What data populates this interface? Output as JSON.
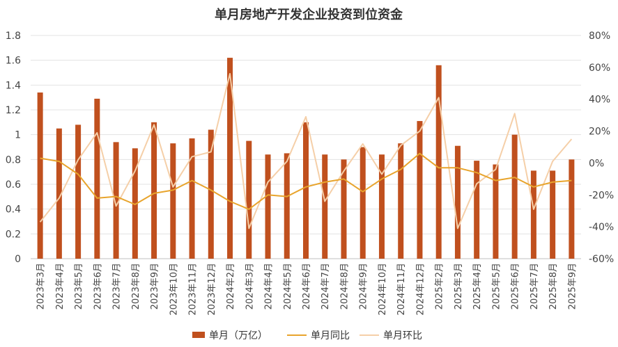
{
  "chart_data": {
    "type": "bar",
    "title": "单月房地产开发企业投资到位资金",
    "categories": [
      "2023年3月",
      "2023年4月",
      "2023年5月",
      "2023年6月",
      "2023年7月",
      "2023年8月",
      "2023年9月",
      "2023年10月",
      "2023年11月",
      "2023年12月",
      "2024年2月",
      "2024年3月",
      "2024年4月",
      "2024年5月",
      "2024年6月",
      "2024年7月",
      "2024年8月",
      "2024年9月",
      "2024年10月",
      "2024年11月",
      "2024年12月",
      "2025年2月",
      "2025年3月",
      "2025年4月",
      "2025年5月",
      "2025年6月",
      "2025年7月",
      "2025年8月",
      "2025年9月"
    ],
    "series": [
      {
        "name": "单月（万亿）",
        "type": "bar",
        "axis": "left",
        "color": "#C0501E",
        "values": [
          1.34,
          1.05,
          1.08,
          1.29,
          0.94,
          0.89,
          1.1,
          0.93,
          0.97,
          1.04,
          1.62,
          0.95,
          0.84,
          0.85,
          1.1,
          0.84,
          0.8,
          0.9,
          0.84,
          0.93,
          1.11,
          1.56,
          0.91,
          0.79,
          0.76,
          1.0,
          0.71,
          0.71,
          0.8
        ]
      },
      {
        "name": "单月同比",
        "type": "line",
        "axis": "right",
        "color": "#E8A42C",
        "values": [
          3,
          1,
          -7,
          -22,
          -21,
          -26,
          -19,
          -17,
          -11,
          -17,
          -24,
          -29,
          -20,
          -21,
          -15,
          -12,
          -10,
          -18,
          -10,
          -4,
          6,
          -3,
          -3,
          -6,
          -11,
          -9,
          -15,
          -12,
          -11
        ]
      },
      {
        "name": "单月环比",
        "type": "line",
        "axis": "right",
        "color": "#F5CFA8",
        "values": [
          -37,
          -22,
          2,
          19,
          -27,
          -5,
          24,
          -15,
          4,
          7,
          56,
          -41,
          -12,
          1,
          29,
          -24,
          -5,
          12,
          -7,
          11,
          20,
          41,
          -41,
          -13,
          -4,
          31,
          -29,
          1,
          15
        ]
      }
    ],
    "ylim_left": [
      0,
      1.8
    ],
    "yticks_left": [
      "0",
      "0.2",
      "0.4",
      "0.6",
      "0.8",
      "1",
      "1.2",
      "1.4",
      "1.6",
      "1.8"
    ],
    "ylim_right": [
      -60,
      80
    ],
    "yticks_right": [
      "-60%",
      "-40%",
      "-20%",
      "0%",
      "20%",
      "40%",
      "60%",
      "80%"
    ],
    "grid": true,
    "legend_position": "bottom"
  }
}
